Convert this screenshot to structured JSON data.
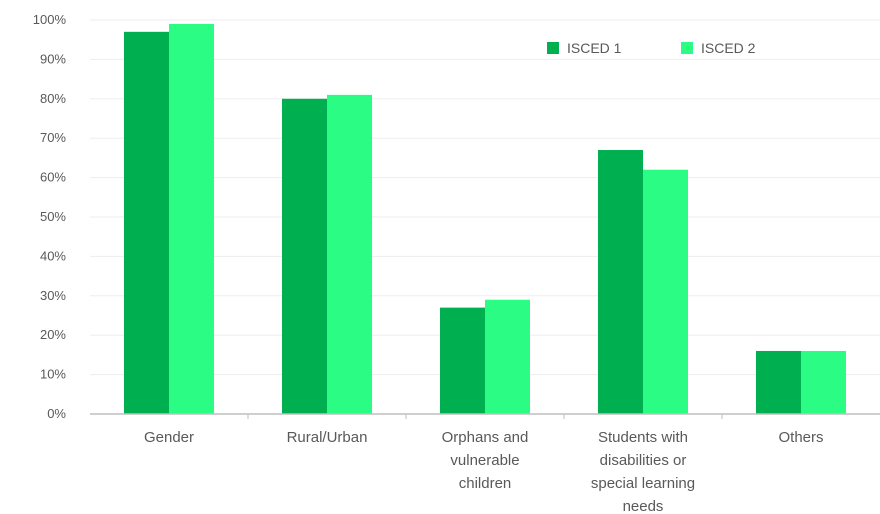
{
  "chart_data": {
    "type": "bar",
    "title": "",
    "xlabel": "",
    "ylabel": "",
    "categories": [
      [
        "Gender"
      ],
      [
        "Rural/Urban"
      ],
      [
        "Orphans and",
        "vulnerable",
        "children"
      ],
      [
        "Students with",
        "disabilities or",
        "special learning",
        "needs"
      ],
      [
        "Others"
      ]
    ],
    "series": [
      {
        "name": "ISCED 1",
        "color": "#00b050",
        "values": [
          97,
          80,
          27,
          67,
          16
        ]
      },
      {
        "name": "ISCED 2",
        "color": "#2afc84",
        "values": [
          99,
          81,
          29,
          62,
          16
        ]
      }
    ],
    "ylim": [
      0,
      100
    ],
    "yticks": [
      "0%",
      "10%",
      "20%",
      "30%",
      "40%",
      "50%",
      "60%",
      "70%",
      "80%",
      "90%",
      "100%"
    ],
    "grid": true,
    "legend_position": "top-right"
  }
}
